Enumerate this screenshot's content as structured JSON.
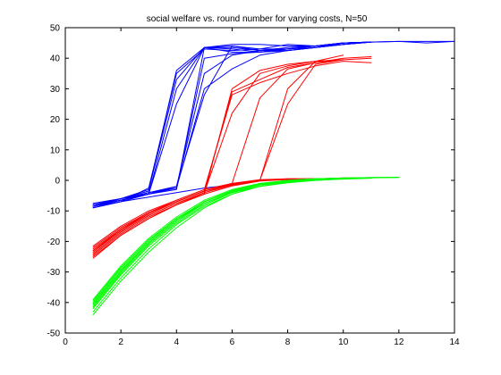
{
  "chart_data": {
    "type": "line",
    "title": "social welfare vs. round number for varying costs, N=50",
    "xlabel": "",
    "ylabel": "",
    "xlim": [
      0,
      14
    ],
    "ylim": [
      -50,
      50
    ],
    "xticks": [
      0,
      2,
      4,
      6,
      8,
      10,
      12,
      14
    ],
    "yticks": [
      -50,
      -40,
      -30,
      -20,
      -10,
      0,
      10,
      20,
      30,
      40,
      50
    ],
    "grid": false,
    "legend": "none",
    "colors": {
      "blue": "#0000ff",
      "red": "#ff0000",
      "green": "#00ff00"
    },
    "series": [
      {
        "color": "blue",
        "x": [
          1,
          2,
          3,
          4,
          5,
          6,
          7,
          8,
          9,
          10,
          11
        ],
        "y": [
          -8.5,
          -6.5,
          -4.5,
          30.0,
          43.5,
          44.0,
          42.5,
          43.5,
          44.0,
          45.0,
          45.3
        ]
      },
      {
        "color": "blue",
        "x": [
          1,
          2,
          3,
          4,
          5,
          6,
          7,
          8,
          9,
          10,
          11
        ],
        "y": [
          -8.0,
          -6.0,
          -3.5,
          36.0,
          43.5,
          42.0,
          42.0,
          42.5,
          43.5,
          45.0,
          45.3
        ]
      },
      {
        "color": "blue",
        "x": [
          1,
          2,
          3,
          4,
          5,
          6,
          7,
          8,
          9,
          10,
          11
        ],
        "y": [
          -9.0,
          -7.0,
          -2.5,
          35.0,
          43.0,
          42.5,
          43.0,
          44.5,
          44.0,
          45.0,
          45.3
        ]
      },
      {
        "color": "blue",
        "x": [
          1,
          2,
          3,
          4,
          5,
          6,
          7,
          8,
          9,
          10,
          11,
          12,
          13,
          14
        ],
        "y": [
          -7.5,
          -6.0,
          -4.5,
          25.0,
          43.5,
          44.5,
          44.5,
          44.0,
          44.0,
          45.0,
          45.3,
          45.5,
          45.5,
          45.5
        ]
      },
      {
        "color": "blue",
        "x": [
          1,
          2,
          3,
          4,
          5,
          6,
          7,
          8,
          9,
          10,
          11
        ],
        "y": [
          -8.5,
          -6.5,
          -4.0,
          -2.0,
          35.0,
          41.0,
          42.5,
          43.0,
          44.0,
          44.5,
          45.3
        ]
      },
      {
        "color": "blue",
        "x": [
          1,
          2,
          3,
          4,
          5,
          6,
          7,
          8,
          9,
          10,
          11,
          12,
          13,
          14
        ],
        "y": [
          -8.0,
          -6.0,
          -4.0,
          -2.5,
          40.0,
          41.5,
          42.0,
          43.0,
          43.5,
          44.5,
          45.3,
          45.5,
          45.0,
          45.5
        ]
      },
      {
        "color": "blue",
        "x": [
          1,
          2,
          3,
          4,
          5,
          6,
          7,
          8,
          9,
          10,
          11
        ],
        "y": [
          -8.5,
          -6.5,
          -4.5,
          -2.0,
          28.0,
          44.0,
          43.0,
          43.0,
          44.0,
          45.0,
          45.3
        ]
      },
      {
        "color": "blue",
        "x": [
          1,
          2,
          3,
          4,
          5,
          6,
          7,
          8,
          9,
          10,
          11
        ],
        "y": [
          -9.0,
          -7.0,
          -4.5,
          -2.5,
          30.0,
          36.5,
          41.0,
          42.5,
          43.5,
          44.5,
          45.3
        ]
      },
      {
        "color": "blue",
        "x": [
          1,
          2,
          3,
          4,
          5,
          6,
          7,
          8,
          9,
          10,
          11
        ],
        "y": [
          -8.0,
          -6.5,
          -4.5,
          -3.0,
          43.5,
          43.5,
          42.5,
          42.5,
          43.5,
          44.5,
          45.3
        ]
      },
      {
        "color": "blue",
        "x": [
          1,
          2,
          3,
          4,
          5,
          6,
          7,
          8,
          9,
          10,
          11
        ],
        "y": [
          -8.5,
          -6.0,
          -3.0,
          33.0,
          43.5,
          43.0,
          42.0,
          43.0,
          44.0,
          45.0,
          45.3
        ]
      },
      {
        "color": "blue",
        "x": [
          1,
          2,
          3,
          4,
          5,
          6
        ],
        "y": [
          -8.5,
          -7.0,
          -5.5,
          -4.0,
          -2.5,
          -1.5
        ]
      },
      {
        "color": "red",
        "x": [
          1,
          2,
          3,
          4,
          5,
          6,
          7,
          8,
          9,
          10,
          11
        ],
        "y": [
          -23.0,
          -16.0,
          -11.0,
          -7.0,
          -3.5,
          29.0,
          33.0,
          37.0,
          38.5,
          40.0,
          40.5
        ]
      },
      {
        "color": "red",
        "x": [
          1,
          2,
          3,
          4,
          5,
          6,
          7,
          8,
          9,
          10,
          11
        ],
        "y": [
          -24.0,
          -17.0,
          -11.5,
          -7.5,
          -4.0,
          22.0,
          35.0,
          37.5,
          39.0,
          39.5,
          40.0
        ]
      },
      {
        "color": "red",
        "x": [
          1,
          2,
          3,
          4,
          5,
          6,
          7,
          8,
          9,
          10,
          11
        ],
        "y": [
          -22.0,
          -15.5,
          -10.5,
          -6.5,
          -3.0,
          28.0,
          32.0,
          35.0,
          37.5,
          39.0,
          38.5
        ]
      },
      {
        "color": "red",
        "x": [
          1,
          2,
          3,
          4,
          5,
          6,
          7,
          8,
          9,
          10
        ],
        "y": [
          -25.0,
          -18.0,
          -12.5,
          -8.0,
          -4.5,
          30.0,
          36.0,
          38.0,
          39.0,
          39.5
        ]
      },
      {
        "color": "red",
        "x": [
          1,
          2,
          3,
          4,
          5,
          6,
          7,
          8,
          9,
          10
        ],
        "y": [
          -21.5,
          -15.0,
          -10.0,
          -6.5,
          -3.0,
          -1.0,
          27.0,
          36.5,
          38.5,
          39.5
        ]
      },
      {
        "color": "red",
        "x": [
          1,
          2,
          3,
          4,
          5,
          6,
          7,
          8,
          9,
          10
        ],
        "y": [
          -24.5,
          -17.5,
          -12.0,
          -8.0,
          -4.0,
          -1.5,
          0.0,
          25.0,
          38.0,
          39.5
        ]
      },
      {
        "color": "red",
        "x": [
          1,
          2,
          3,
          4,
          5,
          6,
          7,
          8,
          9,
          10
        ],
        "y": [
          -23.5,
          -16.5,
          -11.0,
          -7.0,
          -3.5,
          -1.5,
          0.0,
          30.0,
          39.0,
          41.0
        ]
      },
      {
        "color": "red",
        "x": [
          1,
          2,
          3,
          4,
          5,
          6,
          7,
          8,
          9,
          10,
          11
        ],
        "y": [
          -22.5,
          -16.0,
          -10.5,
          -7.0,
          -3.5,
          -1.0,
          0.2,
          0.5,
          0.5,
          0.5,
          0.8
        ]
      },
      {
        "color": "red",
        "x": [
          1,
          2,
          3,
          4,
          5,
          6,
          7,
          8,
          9,
          10,
          11
        ],
        "y": [
          -24.0,
          -17.0,
          -11.5,
          -7.5,
          -4.0,
          -1.5,
          0.0,
          0.5,
          0.5,
          0.8,
          0.8
        ]
      },
      {
        "color": "red",
        "x": [
          1,
          2,
          3,
          4,
          5,
          6,
          7,
          8,
          9,
          10,
          11
        ],
        "y": [
          -23.0,
          -16.5,
          -11.0,
          -7.0,
          -3.5,
          -1.2,
          0.0,
          0.3,
          0.5,
          0.6,
          0.8
        ]
      },
      {
        "color": "red",
        "x": [
          1,
          2,
          3,
          4,
          5,
          6,
          7,
          8,
          9,
          10,
          11
        ],
        "y": [
          -25.5,
          -18.0,
          -12.5,
          -8.0,
          -4.5,
          -1.8,
          -0.2,
          0.3,
          0.5,
          0.7,
          0.8
        ]
      },
      {
        "color": "green",
        "x": [
          1,
          2,
          3,
          4,
          5,
          6,
          7,
          8,
          9,
          10,
          11,
          12
        ],
        "y": [
          -40.0,
          -29.0,
          -20.0,
          -12.5,
          -7.0,
          -3.5,
          -1.5,
          -0.5,
          0.0,
          0.5,
          0.8,
          1.0
        ]
      },
      {
        "color": "green",
        "x": [
          1,
          2,
          3,
          4,
          5,
          6,
          7,
          8,
          9,
          10,
          11
        ],
        "y": [
          -41.5,
          -30.5,
          -21.0,
          -13.5,
          -7.5,
          -4.0,
          -2.0,
          -0.5,
          0.0,
          0.5,
          0.8
        ]
      },
      {
        "color": "green",
        "x": [
          1,
          2,
          3,
          4,
          5,
          6,
          7,
          8,
          9,
          10,
          11,
          12
        ],
        "y": [
          -39.0,
          -28.0,
          -19.0,
          -12.0,
          -6.5,
          -3.0,
          -1.0,
          0.0,
          0.5,
          0.7,
          0.9,
          1.0
        ]
      },
      {
        "color": "green",
        "x": [
          1,
          2,
          3,
          4,
          5,
          6,
          7,
          8,
          9,
          10,
          11
        ],
        "y": [
          -43.0,
          -32.0,
          -22.5,
          -14.5,
          -8.5,
          -4.5,
          -2.0,
          -0.8,
          0.0,
          0.4,
          0.7
        ]
      },
      {
        "color": "green",
        "x": [
          1,
          2,
          3,
          4,
          5,
          6,
          7,
          8,
          9,
          10,
          11
        ],
        "y": [
          -42.0,
          -31.0,
          -21.5,
          -14.0,
          -8.0,
          -4.0,
          -1.5,
          -0.3,
          0.3,
          0.6,
          0.8
        ]
      },
      {
        "color": "green",
        "x": [
          1,
          2,
          3,
          4,
          5,
          6,
          7,
          8,
          9,
          10,
          11,
          12
        ],
        "y": [
          -40.5,
          -29.5,
          -20.5,
          -13.0,
          -7.0,
          -3.5,
          -1.2,
          0.0,
          0.5,
          0.7,
          0.9,
          1.0
        ]
      },
      {
        "color": "green",
        "x": [
          1,
          2,
          3,
          4,
          5,
          6,
          7,
          8,
          9,
          10,
          11
        ],
        "y": [
          -44.0,
          -33.0,
          -23.5,
          -15.5,
          -9.0,
          -4.5,
          -2.0,
          -0.5,
          0.2,
          0.5,
          0.8
        ]
      },
      {
        "color": "green",
        "x": [
          1,
          2,
          3,
          4,
          5,
          6,
          7,
          8,
          9,
          10,
          11
        ],
        "y": [
          -41.0,
          -30.0,
          -20.5,
          -13.0,
          -7.5,
          -3.8,
          -1.5,
          -0.3,
          0.3,
          0.6,
          0.8
        ]
      },
      {
        "color": "green",
        "x": [
          1,
          2,
          3,
          4,
          5,
          6,
          7,
          8,
          9,
          10,
          11,
          12
        ],
        "y": [
          -39.5,
          -28.5,
          -19.5,
          -12.5,
          -7.0,
          -3.3,
          -1.2,
          0.0,
          0.5,
          0.8,
          0.9,
          1.0
        ]
      }
    ]
  }
}
